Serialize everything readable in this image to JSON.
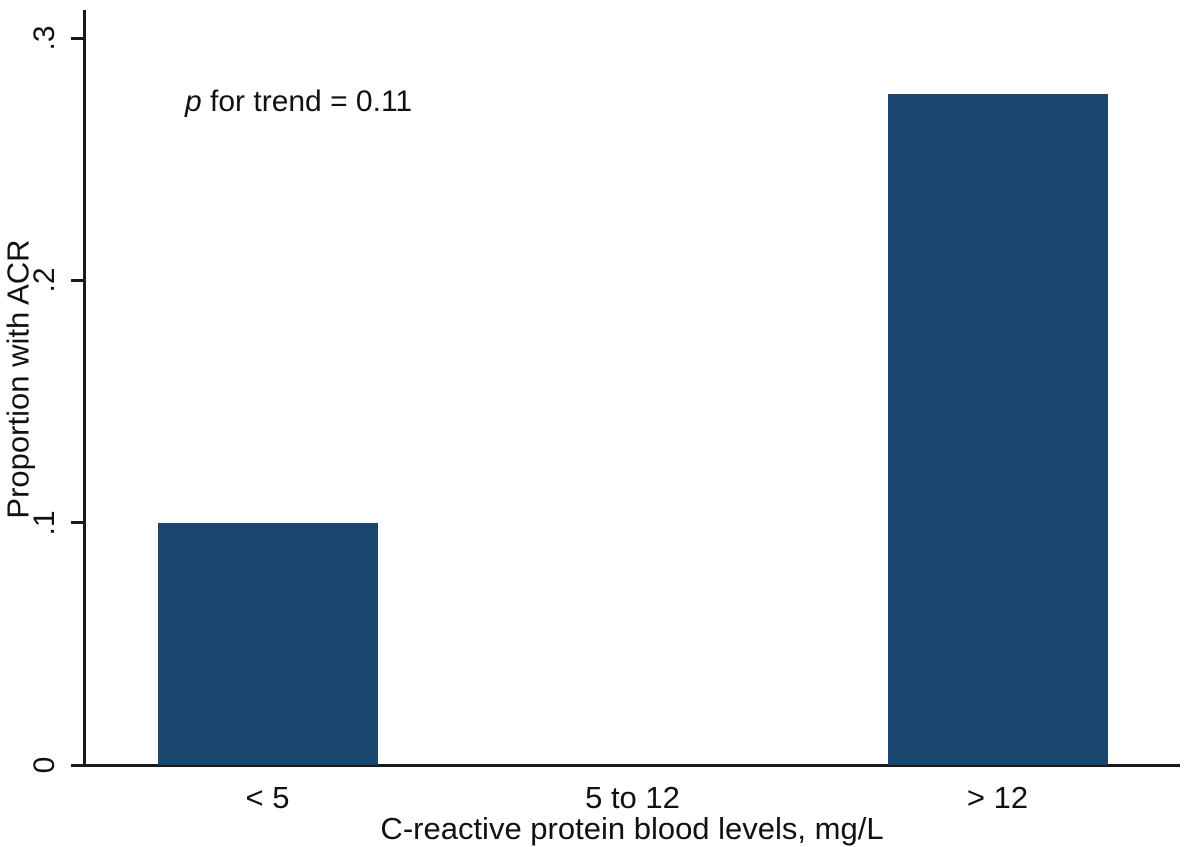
{
  "chart_data": {
    "type": "bar",
    "categories": [
      "< 5",
      "5 to 12",
      "> 12"
    ],
    "values": [
      0.1,
      0,
      0.277
    ],
    "title": "",
    "xlabel": "C-reactive protein blood levels, mg/L",
    "ylabel": "Proportion with ACR",
    "ylim": [
      0,
      0.3
    ],
    "yticks": [
      0,
      0.1,
      0.2,
      0.3
    ],
    "ytick_labels": [
      "0",
      ".1",
      ".2",
      ".3"
    ],
    "annotation": {
      "italic": "p",
      "rest": " for trend = 0.11"
    },
    "bar_color": "#1a476f",
    "axis_color": "#1a1a1a",
    "text_color": "#111111",
    "background": "#ffffff",
    "grid": false,
    "legend_position": "none"
  }
}
